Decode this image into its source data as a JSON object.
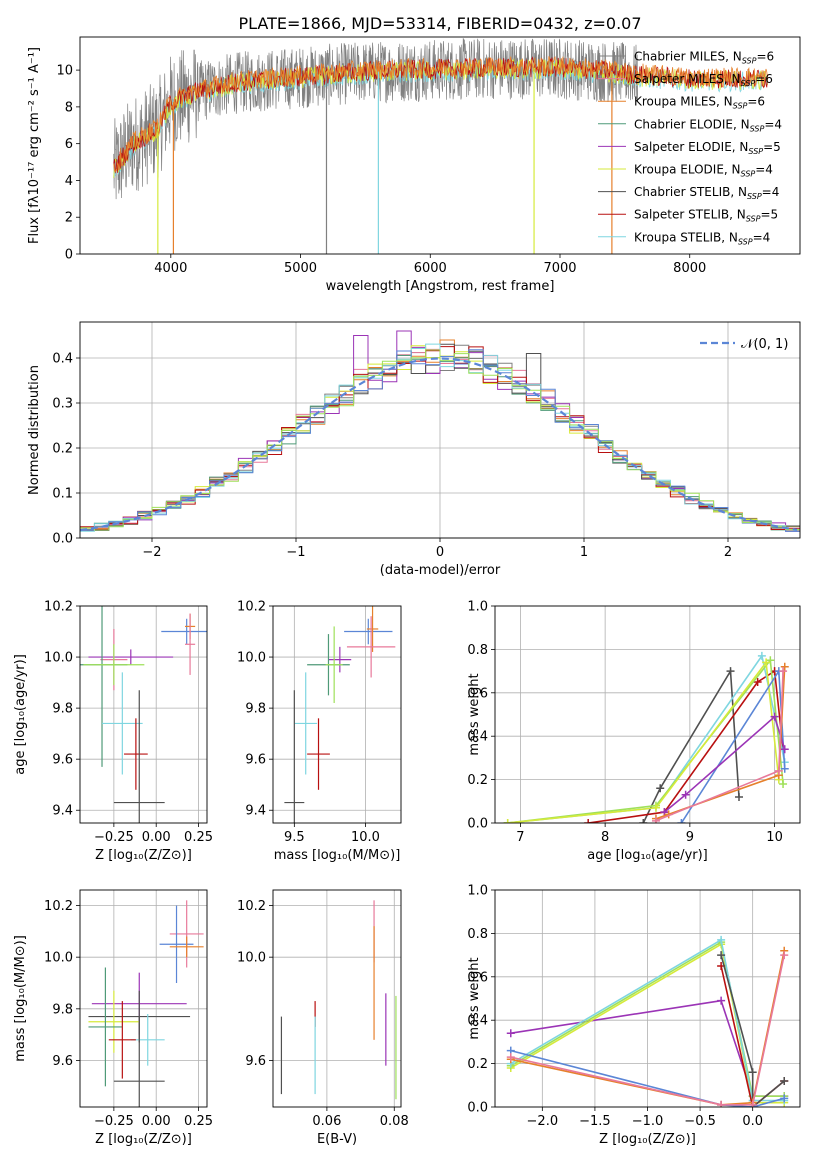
{
  "figure_title": "PLATE=1866, MJD=53314, FIBERID=0432, z=0.07",
  "colors": {
    "Chabrier MILES": "#808080",
    "Salpeter MILES": "#e8799a",
    "Kroupa MILES": "#e6802c",
    "Chabrier ELODIE": "#4f9a78",
    "Salpeter ELODIE": "#9b34b6",
    "Kroupa ELODIE": "#d6ea3b",
    "Chabrier STELIB": "#505050",
    "Salpeter STELIB": "#b81010",
    "Kroupa STELIB": "#7fd6e0",
    "blue": "#5b86d6",
    "green": "#9fe05a"
  },
  "chart_data": [
    {
      "id": "spectrum",
      "type": "line",
      "title": "",
      "xlabel": "wavelength [Angstrom, rest frame]",
      "ylabel": "Flux [fλ10⁻¹⁷ erg cm⁻² s⁻¹ A⁻¹]",
      "xlim": [
        3300,
        8850
      ],
      "ylim": [
        0,
        11.8
      ],
      "xticks": [
        4000,
        5000,
        6000,
        7000,
        8000
      ],
      "yticks": [
        0,
        2,
        4,
        6,
        8,
        10
      ],
      "legend_position": "top-right",
      "legend": [
        "Chabrier MILES, N_SSP=6",
        "Salpeter MILES, N_SSP=6",
        "Kroupa MILES, N_SSP=6",
        "Chabrier ELODIE, N_SSP=4",
        "Salpeter ELODIE, N_SSP=5",
        "Kroupa ELODIE, N_SSP=4",
        "Chabrier STELIB, N_SSP=4",
        "Salpeter STELIB, N_SSP=5",
        "Kroupa STELIB, N_SSP=4"
      ],
      "legend_colors": [
        "#808080",
        "#e8799a",
        "#e6802c",
        "#4f9a78",
        "#9b34b6",
        "#d6ea3b",
        "#505050",
        "#b81010",
        "#7fd6e0"
      ],
      "continuum": [
        [
          3560,
          4.6
        ],
        [
          3700,
          5.9
        ],
        [
          3900,
          6.8
        ],
        [
          4000,
          8.2
        ],
        [
          4200,
          8.8
        ],
        [
          4500,
          9.3
        ],
        [
          5000,
          9.6
        ],
        [
          5500,
          9.9
        ],
        [
          6000,
          10.0
        ],
        [
          6500,
          10.1
        ],
        [
          7000,
          10.1
        ],
        [
          7400,
          9.9
        ],
        [
          7600,
          9.7
        ],
        [
          8000,
          9.5
        ],
        [
          8500,
          9.5
        ]
      ],
      "gray_span": [
        3560,
        7600
      ],
      "model_span": [
        3560,
        8600
      ],
      "dips": [
        {
          "x": 3900,
          "y": 0.0,
          "color": "#d6ea3b"
        },
        {
          "x": 4020,
          "y": 0.0,
          "color": "#e6802c"
        },
        {
          "x": 5200,
          "y": 0.0,
          "color": "#808080"
        },
        {
          "x": 5600,
          "y": 0.0,
          "color": "#7fd6e0"
        },
        {
          "x": 6800,
          "y": 0.0,
          "color": "#d6ea3b"
        },
        {
          "x": 7400,
          "y": 0.0,
          "color": "#e6802c"
        }
      ],
      "grid": false
    },
    {
      "id": "residuals",
      "type": "line",
      "title": "",
      "xlabel": "(data-model)/error",
      "ylabel": "Normed distribution",
      "xlim": [
        -2.5,
        2.5
      ],
      "ylim": [
        0,
        0.48
      ],
      "xticks": [
        -2,
        -1,
        0,
        1,
        2
      ],
      "yticks": [
        0.0,
        0.1,
        0.2,
        0.3,
        0.4
      ],
      "legend": "𝒩(0, 1)",
      "legend_position": "top-right",
      "grid": true,
      "normal_curve": {
        "mean": 0,
        "sigma": 1
      },
      "bin_width": 0.1,
      "series_colors": [
        "#808080",
        "#e8799a",
        "#e6802c",
        "#4f9a78",
        "#9b34b6",
        "#d6ea3b",
        "#505050",
        "#b81010",
        "#7fd6e0",
        "#5b86d6",
        "#9fe05a"
      ],
      "peak_overrides": [
        {
          "x": -0.3,
          "y": 0.46,
          "color": "#9b34b6"
        },
        {
          "x": -0.6,
          "y": 0.45,
          "color": "#9b34b6"
        },
        {
          "x": 0.0,
          "y": 0.44,
          "color": "#e6802c"
        },
        {
          "x": 0.6,
          "y": 0.41,
          "color": "#505050"
        }
      ]
    },
    {
      "id": "age-vs-Z",
      "type": "scatter",
      "xlabel": "Z [log₁₀(Z/Z⊙)]",
      "ylabel": "age  [log₁₀(age/yr)]",
      "xlim": [
        -0.45,
        0.3
      ],
      "ylim": [
        9.35,
        10.2
      ],
      "xticks": [
        -0.25,
        0.0,
        0.25
      ],
      "yticks": [
        9.4,
        9.6,
        9.8,
        10.0,
        10.2
      ],
      "grid": true,
      "points": [
        {
          "x": 0.18,
          "y": 10.1,
          "xerr": 0.15,
          "yerr": 0.05,
          "color": "#5b86d6"
        },
        {
          "x": 0.2,
          "y": 10.12,
          "xerr": 0.03,
          "yerr": 0.05,
          "color": "#e6802c"
        },
        {
          "x": 0.2,
          "y": 10.05,
          "xerr": 0.03,
          "yerr": 0.12,
          "color": "#e8799a"
        },
        {
          "x": -0.15,
          "y": 10.0,
          "xerr": 0.25,
          "yerr": 0.03,
          "color": "#9b34b6"
        },
        {
          "x": -0.25,
          "y": 9.99,
          "xerr": 0.08,
          "yerr": 0.12,
          "color": "#e8799a"
        },
        {
          "x": -0.32,
          "y": 9.97,
          "xerr": 0.15,
          "yerr": 0.4,
          "color": "#4f9a78"
        },
        {
          "x": -0.25,
          "y": 9.97,
          "xerr": 0.18,
          "yerr": 0.08,
          "color": "#9fe05a"
        },
        {
          "x": -0.2,
          "y": 9.74,
          "xerr": 0.12,
          "yerr": 0.2,
          "color": "#7fd6e0"
        },
        {
          "x": -0.12,
          "y": 9.62,
          "xerr": 0.07,
          "yerr": 0.14,
          "color": "#b81010"
        },
        {
          "x": -0.1,
          "y": 9.43,
          "xerr": 0.15,
          "yerr": 0.44,
          "color": "#505050"
        }
      ]
    },
    {
      "id": "age-vs-mass",
      "type": "scatter",
      "xlabel": "mass [log₁₀(M/M⊙)]",
      "ylabel": "",
      "xlim": [
        9.35,
        10.25
      ],
      "ylim": [
        9.35,
        10.2
      ],
      "xticks": [
        9.5,
        10.0
      ],
      "yticks": [
        9.4,
        9.6,
        9.8,
        10.0,
        10.2
      ],
      "grid": true,
      "points": [
        {
          "x": 10.02,
          "y": 10.1,
          "xerr": 0.17,
          "yerr": 0.05,
          "color": "#5b86d6"
        },
        {
          "x": 10.05,
          "y": 10.11,
          "xerr": 0.04,
          "yerr": 0.09,
          "color": "#e6802c"
        },
        {
          "x": 10.04,
          "y": 10.04,
          "xerr": 0.17,
          "yerr": 0.12,
          "color": "#e8799a"
        },
        {
          "x": 9.82,
          "y": 9.99,
          "xerr": 0.08,
          "yerr": 0.05,
          "color": "#9b34b6"
        },
        {
          "x": 9.74,
          "y": 9.97,
          "xerr": 0.15,
          "yerr": 0.12,
          "color": "#4f9a78"
        },
        {
          "x": 9.78,
          "y": 9.97,
          "xerr": 0.06,
          "yerr": 0.15,
          "color": "#9fe05a"
        },
        {
          "x": 9.58,
          "y": 9.74,
          "xerr": 0.08,
          "yerr": 0.2,
          "color": "#7fd6e0"
        },
        {
          "x": 9.67,
          "y": 9.62,
          "xerr": 0.08,
          "yerr": 0.14,
          "color": "#b81010"
        },
        {
          "x": 9.5,
          "y": 9.43,
          "xerr": 0.07,
          "yerr": 0.44,
          "color": "#505050"
        }
      ]
    },
    {
      "id": "weight-vs-age",
      "type": "line",
      "xlabel": "age  [log₁₀(age/yr)]",
      "ylabel": "mass weight",
      "xlim": [
        6.7,
        10.3
      ],
      "ylim": [
        0,
        1.0
      ],
      "xticks": [
        7,
        8,
        9,
        10
      ],
      "yticks": [
        0.0,
        0.2,
        0.4,
        0.6,
        0.8,
        1.0
      ],
      "grid": true,
      "series": [
        {
          "color": "#505050",
          "points": [
            [
              8.45,
              0.0
            ],
            [
              8.65,
              0.16
            ],
            [
              9.48,
              0.7
            ],
            [
              9.58,
              0.12
            ]
          ]
        },
        {
          "color": "#b81010",
          "points": [
            [
              7.8,
              0.0
            ],
            [
              8.7,
              0.05
            ],
            [
              9.8,
              0.65
            ],
            [
              10.0,
              0.7
            ],
            [
              10.1,
              0.34
            ]
          ]
        },
        {
          "color": "#7fd6e0",
          "points": [
            [
              6.85,
              0.0
            ],
            [
              8.6,
              0.07
            ],
            [
              9.85,
              0.77
            ],
            [
              10.12,
              0.28
            ]
          ]
        },
        {
          "color": "#9fe05a",
          "points": [
            [
              6.85,
              0.0
            ],
            [
              8.6,
              0.08
            ],
            [
              9.95,
              0.75
            ],
            [
              10.1,
              0.18
            ]
          ]
        },
        {
          "color": "#d6ea3b",
          "points": [
            [
              6.85,
              0.0
            ],
            [
              8.6,
              0.07
            ],
            [
              9.9,
              0.74
            ],
            [
              10.05,
              0.2
            ]
          ]
        },
        {
          "color": "#5b86d6",
          "points": [
            [
              8.9,
              0.0
            ],
            [
              10.05,
              0.7
            ],
            [
              10.12,
              0.25
            ]
          ]
        },
        {
          "color": "#9b34b6",
          "points": [
            [
              8.7,
              0.05
            ],
            [
              8.95,
              0.13
            ],
            [
              10.0,
              0.49
            ],
            [
              10.12,
              0.34
            ]
          ]
        },
        {
          "color": "#e6802c",
          "points": [
            [
              8.6,
              0.02
            ],
            [
              8.75,
              0.04
            ],
            [
              10.05,
              0.22
            ],
            [
              10.12,
              0.72
            ]
          ]
        },
        {
          "color": "#e8799a",
          "points": [
            [
              8.6,
              0.01
            ],
            [
              10.05,
              0.24
            ],
            [
              10.1,
              0.7
            ]
          ]
        }
      ]
    },
    {
      "id": "mass-vs-Z",
      "type": "scatter",
      "xlabel": "Z [log₁₀(Z/Z⊙)]",
      "ylabel": "mass [log₁₀(M/M⊙)]",
      "xlim": [
        -0.45,
        0.3
      ],
      "ylim": [
        9.42,
        10.26
      ],
      "xticks": [
        -0.25,
        0.0,
        0.25
      ],
      "yticks": [
        9.6,
        9.8,
        10.0,
        10.2
      ],
      "grid": true,
      "points": [
        {
          "x": 0.18,
          "y": 10.09,
          "xerr": 0.1,
          "yerr": 0.13,
          "color": "#e8799a"
        },
        {
          "x": 0.12,
          "y": 10.05,
          "xerr": 0.1,
          "yerr": 0.15,
          "color": "#5b86d6"
        },
        {
          "x": 0.18,
          "y": 10.04,
          "xerr": 0.1,
          "yerr": 0.04,
          "color": "#e6802c"
        },
        {
          "x": -0.1,
          "y": 9.82,
          "xerr": 0.28,
          "yerr": 0.12,
          "color": "#9b34b6"
        },
        {
          "x": -0.1,
          "y": 9.77,
          "xerr": 0.3,
          "yerr": 0.1,
          "color": "#505050"
        },
        {
          "x": -0.25,
          "y": 9.75,
          "xerr": 0.15,
          "yerr": 0.12,
          "color": "#d6ea3b"
        },
        {
          "x": -0.3,
          "y": 9.73,
          "xerr": 0.1,
          "yerr": 0.23,
          "color": "#4f9a78"
        },
        {
          "x": -0.05,
          "y": 9.68,
          "xerr": 0.1,
          "yerr": 0.1,
          "color": "#7fd6e0"
        },
        {
          "x": -0.2,
          "y": 9.68,
          "xerr": 0.08,
          "yerr": 0.15,
          "color": "#b81010"
        },
        {
          "x": -0.1,
          "y": 9.52,
          "xerr": 0.15,
          "yerr": 0.25,
          "color": "#505050"
        }
      ]
    },
    {
      "id": "mass-vs-EBV",
      "type": "scatter",
      "xlabel": "E(B-V)",
      "ylabel": "",
      "xlim": [
        0.044,
        0.082
      ],
      "ylim": [
        9.42,
        10.26
      ],
      "xticks": [
        0.06,
        0.08
      ],
      "yticks": [
        9.6,
        10.0,
        10.2
      ],
      "grid": true,
      "points": [
        {
          "x": 0.0465,
          "y": 9.62,
          "yerr": 0.15,
          "color": "#505050"
        },
        {
          "x": 0.0565,
          "y": 9.78,
          "yerr": 0.05,
          "color": "#b81010"
        },
        {
          "x": 0.0565,
          "y": 9.62,
          "yerr": 0.15,
          "color": "#7fd6e0"
        },
        {
          "x": 0.074,
          "y": 10.1,
          "yerr": 0.12,
          "color": "#e8799a"
        },
        {
          "x": 0.074,
          "y": 9.9,
          "yerr": 0.22,
          "color": "#e6802c"
        },
        {
          "x": 0.0775,
          "y": 9.72,
          "yerr": 0.14,
          "color": "#9b34b6"
        },
        {
          "x": 0.0805,
          "y": 9.65,
          "yerr": 0.2,
          "color": "#9fe05a"
        }
      ]
    },
    {
      "id": "weight-vs-Z",
      "type": "line",
      "xlabel": "Z [log₁₀(Z/Z⊙)]",
      "ylabel": "mass weight",
      "xlim": [
        -2.45,
        0.45
      ],
      "ylim": [
        0,
        1.0
      ],
      "xticks": [
        -2.0,
        -1.5,
        -1.0,
        -0.5,
        0.0
      ],
      "yticks": [
        0.0,
        0.2,
        0.4,
        0.6,
        0.8,
        1.0
      ],
      "grid": true,
      "series": [
        {
          "color": "#9b34b6",
          "points": [
            [
              -2.3,
              0.34
            ],
            [
              -0.3,
              0.49
            ],
            [
              0.0,
              0.05
            ],
            [
              0.3,
              0.05
            ]
          ]
        },
        {
          "color": "#d6ea3b",
          "points": [
            [
              -2.3,
              0.18
            ],
            [
              -0.3,
              0.75
            ],
            [
              0.0,
              0.02
            ],
            [
              0.3,
              0.02
            ]
          ]
        },
        {
          "color": "#9fe05a",
          "points": [
            [
              -2.3,
              0.19
            ],
            [
              -0.3,
              0.76
            ],
            [
              0.0,
              0.05
            ],
            [
              0.3,
              0.05
            ]
          ]
        },
        {
          "color": "#7fd6e0",
          "points": [
            [
              -2.3,
              0.2
            ],
            [
              -0.3,
              0.77
            ],
            [
              0.0,
              0.03
            ],
            [
              0.3,
              0.03
            ]
          ]
        },
        {
          "color": "#b81010",
          "points": [
            [
              -0.3,
              0.65
            ],
            [
              0.0,
              0.0
            ],
            [
              0.3,
              0.12
            ]
          ]
        },
        {
          "color": "#505050",
          "points": [
            [
              -0.3,
              0.7
            ],
            [
              0.0,
              0.16
            ],
            [
              0.0,
              0.0
            ],
            [
              0.3,
              0.12
            ]
          ]
        },
        {
          "color": "#5b86d6",
          "points": [
            [
              -2.3,
              0.26
            ],
            [
              -0.3,
              0.01
            ],
            [
              0.0,
              0.0
            ],
            [
              0.3,
              0.04
            ]
          ]
        },
        {
          "color": "#e6802c",
          "points": [
            [
              -2.3,
              0.22
            ],
            [
              -0.3,
              0.01
            ],
            [
              0.0,
              0.02
            ],
            [
              0.3,
              0.72
            ]
          ]
        },
        {
          "color": "#e8799a",
          "points": [
            [
              -2.3,
              0.23
            ],
            [
              -0.3,
              0.01
            ],
            [
              0.0,
              0.01
            ],
            [
              0.3,
              0.7
            ]
          ]
        }
      ]
    }
  ]
}
